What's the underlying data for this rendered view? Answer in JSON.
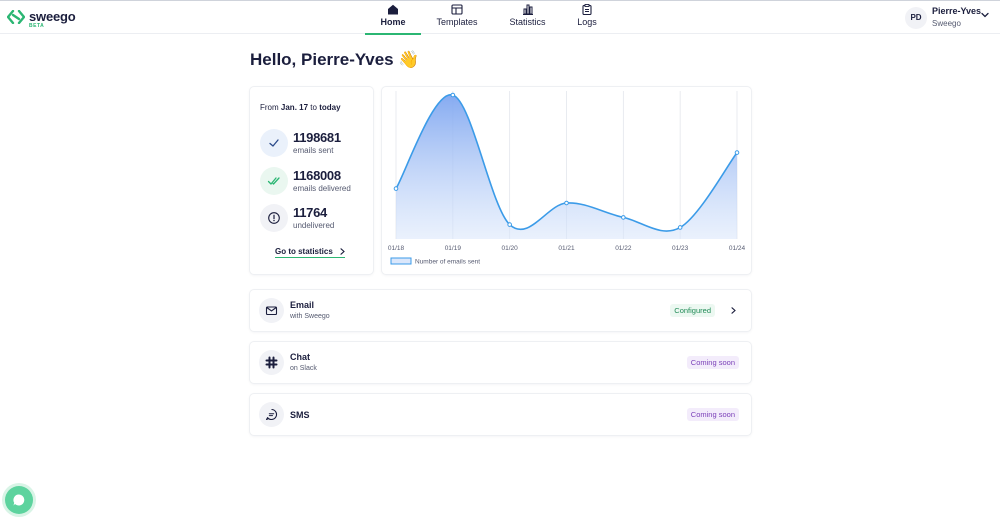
{
  "brand": {
    "name": "sweego",
    "tag": "BETA",
    "accent": "#2bb673",
    "primary_chart": "#3b9be8"
  },
  "nav": {
    "items": [
      {
        "label": "Home",
        "icon": "home-icon",
        "active": true
      },
      {
        "label": "Templates",
        "icon": "templates-icon",
        "active": false
      },
      {
        "label": "Statistics",
        "icon": "statistics-icon",
        "active": false
      },
      {
        "label": "Logs",
        "icon": "logs-icon",
        "active": false
      }
    ]
  },
  "user": {
    "initials": "PD",
    "name": "Pierre-Yves",
    "organization": "Sweego"
  },
  "greeting": "Hello, Pierre-Yves 👋",
  "stats": {
    "from_prefix": "From",
    "from_date": "Jan. 17",
    "to_word": "to",
    "to_date": "today",
    "sent": {
      "value": "1198681",
      "label": "emails sent"
    },
    "delivered": {
      "value": "1168008",
      "label": "emails delivered"
    },
    "undelivered": {
      "value": "11764",
      "label": "undelivered"
    },
    "link_label": "Go to statistics"
  },
  "chart_data": {
    "type": "area",
    "x": [
      "01/18",
      "01/19",
      "01/20",
      "01/21",
      "01/22",
      "01/23",
      "01/24"
    ],
    "series": [
      {
        "name": "Number of emails sent",
        "values": [
          35,
          100,
          10,
          25,
          15,
          8,
          60
        ]
      }
    ],
    "ylim": [
      0,
      100
    ],
    "grid": "vertical",
    "legend": "bottom-left"
  },
  "channels": [
    {
      "title": "Email",
      "subtitle": "with Sweego",
      "status": "Configured",
      "icon": "mail-icon"
    },
    {
      "title": "Chat",
      "subtitle": "on Slack",
      "status": "Coming soon",
      "icon": "slack-icon"
    },
    {
      "title": "SMS",
      "subtitle": "",
      "status": "Coming soon",
      "icon": "sms-icon"
    }
  ]
}
